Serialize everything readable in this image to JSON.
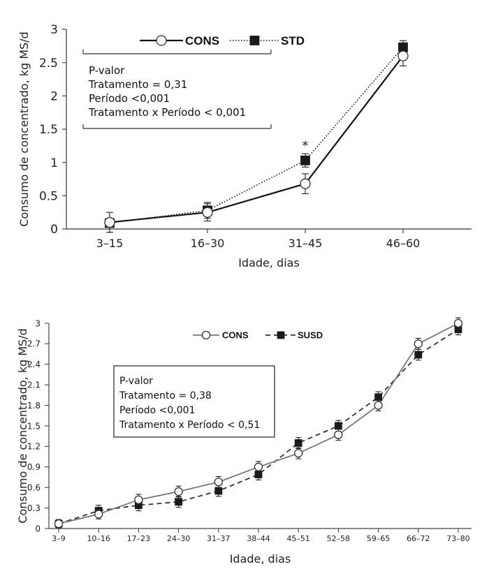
{
  "chart_data": [
    {
      "type": "line",
      "categories": [
        "3–15",
        "16–30",
        "31–45",
        "46–60"
      ],
      "series": [
        {
          "name": "CONS",
          "values": [
            0.1,
            0.25,
            0.68,
            2.6
          ],
          "err": [
            0.15,
            0.13,
            0.15,
            0.15
          ],
          "marker": "circle-open",
          "line": "solid"
        },
        {
          "name": "STD",
          "values": [
            0.09,
            0.28,
            1.03,
            2.73
          ],
          "err": [
            0.05,
            0.12,
            0.1,
            0.1
          ],
          "marker": "square-filled",
          "line": "dotted"
        }
      ],
      "xlabel": "Idade, dias",
      "ylabel": "Consumo de concentrado, kg MS/d",
      "ylim": [
        0,
        3
      ],
      "yticks": [
        "0",
        "0.5",
        "1",
        "1.5",
        "2",
        "2.5",
        "3"
      ],
      "annotation_box": [
        "P-valor",
        "Tratamento = 0,31",
        "Período <0,001",
        "Tratamento x Período < 0,001"
      ],
      "significance": {
        "category_index": 2,
        "symbol": "*"
      },
      "legend": "top"
    },
    {
      "type": "line",
      "categories": [
        "3–9",
        "10–16",
        "17–23",
        "24–30",
        "31–37",
        "38–44",
        "45–51",
        "52–58",
        "59–65",
        "66–72",
        "73–80"
      ],
      "series": [
        {
          "name": "CONS",
          "values": [
            0.07,
            0.21,
            0.42,
            0.54,
            0.68,
            0.9,
            1.1,
            1.37,
            1.8,
            2.7,
            3.0
          ],
          "err": [
            0.06,
            0.07,
            0.08,
            0.08,
            0.08,
            0.08,
            0.08,
            0.08,
            0.08,
            0.08,
            0.08
          ],
          "marker": "circle-open",
          "line": "solid"
        },
        {
          "name": "SUSD",
          "values": [
            0.07,
            0.26,
            0.34,
            0.39,
            0.55,
            0.79,
            1.25,
            1.5,
            1.92,
            2.54,
            2.91
          ],
          "err": [
            0.06,
            0.08,
            0.08,
            0.08,
            0.08,
            0.08,
            0.08,
            0.08,
            0.08,
            0.08,
            0.08
          ],
          "marker": "square-filled",
          "line": "dashed"
        }
      ],
      "xlabel": "Idade, dias",
      "ylabel": "Consumo de concentrado, kg MS/d",
      "ylim": [
        0,
        3
      ],
      "yticks": [
        "0",
        "0.3",
        "0.6",
        "0.9",
        "1.2",
        "1.5",
        "1.8",
        "2.1",
        "2.4",
        "2.7",
        "3"
      ],
      "annotation_box": [
        "P-valor",
        "Tratamento = 0,38",
        "Período <0,001",
        "Tratamento x Período < 0,51"
      ],
      "legend": "top"
    }
  ]
}
